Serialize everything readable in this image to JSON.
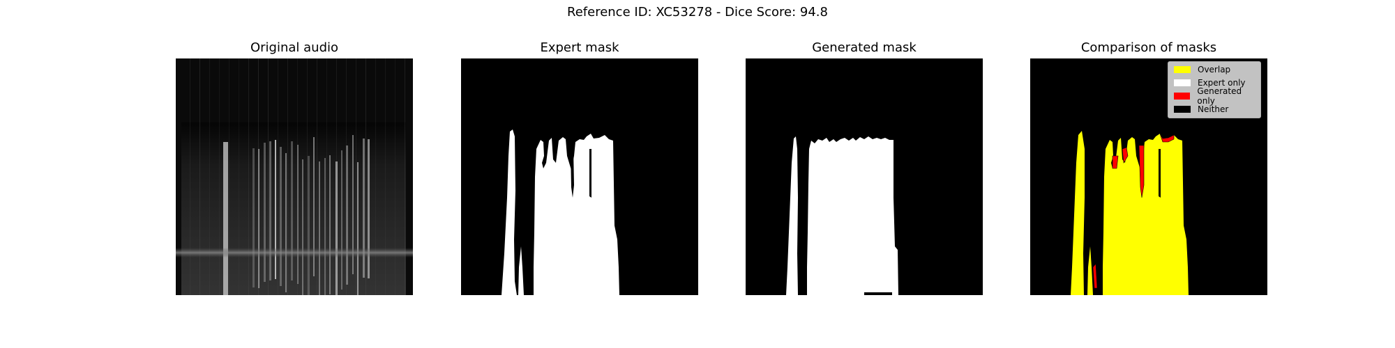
{
  "figure": {
    "suptitle": "Reference ID: XC53278 - Dice Score: 94.8"
  },
  "panels": [
    {
      "title": "Original audio"
    },
    {
      "title": "Expert mask"
    },
    {
      "title": "Generated mask"
    },
    {
      "title": "Comparison of masks"
    }
  ],
  "legend": {
    "items": [
      {
        "label": "Overlap",
        "color": "#ffff00"
      },
      {
        "label": "Expert only",
        "color": "#ffffff"
      },
      {
        "label": "Generated only",
        "color": "#ff0000"
      },
      {
        "label": "Neither",
        "color": "#000000"
      }
    ]
  }
}
